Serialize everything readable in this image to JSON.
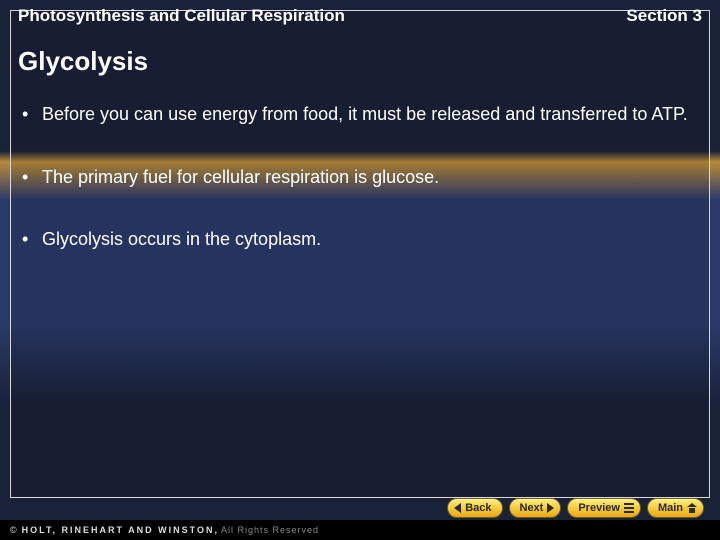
{
  "header": {
    "chapter_title": "Photosynthesis and Cellular Respiration",
    "section_label": "Section 3"
  },
  "slide": {
    "title": "Glycolysis",
    "bullets": [
      "Before you can use energy from food, it must be released and transferred to ATP.",
      "The primary fuel for cellular respiration is glucose.",
      "Glycolysis occurs in the cytoplasm."
    ]
  },
  "nav": {
    "back_label": "Back",
    "next_label": "Next",
    "preview_label": "Preview",
    "main_label": "Main"
  },
  "footer": {
    "copyright_symbol": "©",
    "publisher": "HOLT, RINEHART AND WINSTON,",
    "rights": "All Rights Reserved"
  },
  "colors": {
    "text": "#ffffff",
    "button_gradient_top": "#fff07a",
    "button_gradient_bottom": "#e6a818",
    "button_border": "#7a5a10",
    "footer_bg": "#000000"
  },
  "typography": {
    "header_fontsize": 17,
    "title_fontsize": 26,
    "bullet_fontsize": 18,
    "nav_fontsize": 11,
    "footer_fontsize": 9
  }
}
